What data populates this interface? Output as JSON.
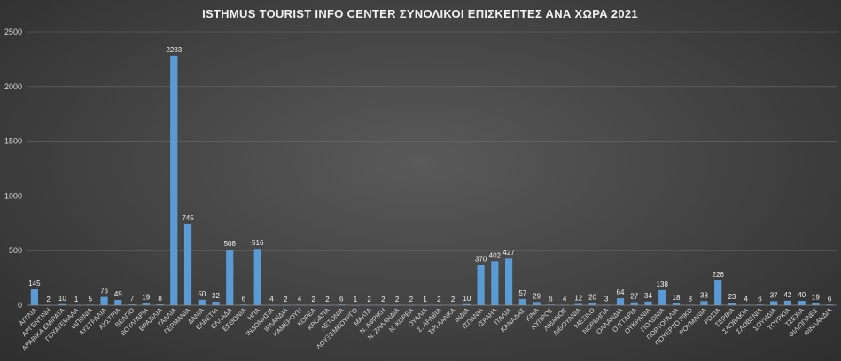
{
  "chart_data": {
    "type": "bar",
    "title": "ISTHMUS TOURIST INFO CENTER ΣΥΝΟΛΙΚΟΙ ΕΠΙΣΚΕΠΤΕΣ ΑΝΑ ΧΩΡΑ 2021",
    "xlabel": "",
    "ylabel": "",
    "ylim": [
      0,
      2500
    ],
    "yticks": [
      0,
      500,
      1000,
      1500,
      2000,
      2500
    ],
    "grid": true,
    "categories": [
      "ΑΓΓΛΙΑ",
      "ΑΡΓΕΝΤΙΝΗ",
      "ΑΡΑΒΙΚΑ ΕΜΙΡΑΤΑ",
      "ΓΟΥΑΤΕΜΑΛΑ",
      "ΙΑΠΩΝΙΑ",
      "ΑΥΣΤΡΑΛΙΑ",
      "ΑΥΣΤΡΙΑ",
      "ΒΕΛΓΙΟ",
      "ΒΟΥΛΓΑΡΙΑ",
      "ΒΡΑΖΙΛΙΑ",
      "ΓΑΛΛΙΑ",
      "ΓΕΡΜΑΝΙΑ",
      "ΔΑΝΙΑ",
      "ΕΛΒΕΤΙΑ",
      "ΕΛΛΑΔΑ",
      "ΕΣΘΟΝΙΑ",
      "ΗΠΑ",
      "ΙΝΔΟΝΗΣΙΑ",
      "ΙΡΛΑΝΔΙΑ",
      "ΚΑΜΕΡΟΥΝ",
      "ΚΟΡΕΑ",
      "ΚΡΟΑΤΙΑ",
      "ΛΕΤΟΝΙΑ",
      "ΛΟΥΞΕΜΒΟΥΡΓΟ",
      "ΜΑΛΤΑ",
      "Ν. ΑΦΡΙΚΗ",
      "Ν. ΖΗΛΑΝΔΙΑ",
      "Ν. ΚΟΡΕΑ",
      "ΟΥΑΛΙΑ",
      "Σ. ΑΡΑΒΙΑ",
      "ΣΡΙ ΛΑΝΚΑ",
      "ΙΝΔΙΑ",
      "ΙΣΠΑΝΙΑ",
      "ΙΣΡΑΗΛ",
      "ΙΤΑΛΙΑ",
      "ΚΑΝΑΔΑΣ",
      "ΚΙΝΑ",
      "ΚΥΠΡΟΣ",
      "ΛΙΒΑΝΟΣ",
      "ΛΙΘΟΥΑΝΙΑ",
      "ΜΕΞΙΚΟ",
      "ΝΟΡΒΗΓΙΑ",
      "ΟΛΛΑΝΔΙΑ",
      "ΟΥΓΓΑΡΙΑ",
      "ΟΥΚΡΑΝΙΑ",
      "ΠΟΛΩΝΙΑ",
      "ΠΟΡΤΟΓΑΛΙΑ",
      "ΠΟΥΕΡΤΟ ΡΙΚΟ",
      "ΡΟΥΜΑΝΙΑ",
      "ΡΩΣΙΑ",
      "ΣΕΡΒΙΑ",
      "ΣΛΟΒΑΚΙΑ",
      "ΣΛΟΒΕΝΙΑ",
      "ΣΟΥΗΔΙΑ",
      "ΤΟΥΡΚΙΑ",
      "ΤΣΕΧΙΑ",
      "ΦΙΛΙΠΠΙΝΕΣ",
      "ΦΙΝΛΑΝΔΙΑ"
    ],
    "values": [
      145,
      2,
      10,
      1,
      5,
      76,
      49,
      7,
      19,
      8,
      2283,
      745,
      50,
      32,
      508,
      6,
      516,
      4,
      2,
      4,
      2,
      2,
      6,
      1,
      2,
      2,
      2,
      2,
      1,
      2,
      2,
      10,
      370,
      402,
      427,
      57,
      29,
      6,
      4,
      12,
      20,
      3,
      64,
      27,
      34,
      138,
      18,
      3,
      38,
      226,
      23,
      4,
      6,
      37,
      42,
      40,
      19,
      6
    ],
    "colors": {
      "bar": "#5b9bd5",
      "background": "#464646",
      "text": "#d9d9d9"
    }
  }
}
